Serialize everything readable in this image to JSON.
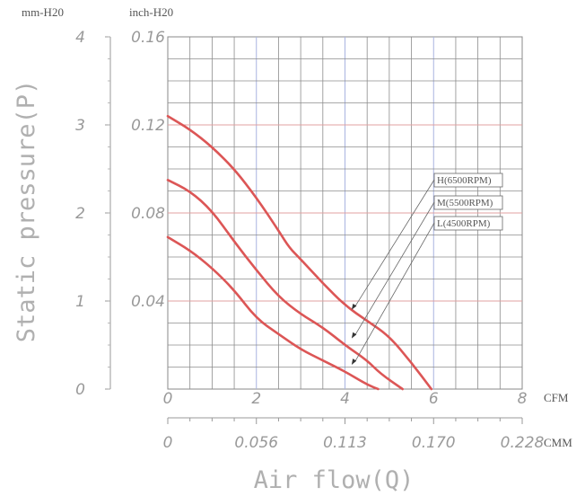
{
  "chart_data": {
    "type": "line",
    "ylabel": "Static pressure(P)",
    "xlabel": "Air flow(Q)",
    "unit_left_mm": "mm-H20",
    "unit_left_inch": "inch-H20",
    "unit_bottom_cfm": "CFM",
    "unit_bottom_cmm": "CMM",
    "xlim": [
      0,
      8
    ],
    "ylim": [
      0,
      0.16
    ],
    "grid": true,
    "y_ticks_inch": [
      "0.16",
      "0.12",
      "0.08",
      "0.04"
    ],
    "y_ticks_mm": [
      "4",
      "3",
      "2",
      "1",
      "0"
    ],
    "x_ticks_cfm": [
      "0",
      "2",
      "4",
      "6",
      "8"
    ],
    "x_ticks_cmm": [
      "0",
      "0.056",
      "0.113",
      "0.170",
      "0.228"
    ],
    "series": [
      {
        "name": "H(6500RPM)",
        "x": [
          0,
          0.5,
          1.0,
          1.5,
          2.0,
          2.5,
          2.75,
          3.0,
          3.5,
          4.0,
          4.5,
          5.0,
          5.5,
          5.95
        ],
        "y": [
          0.124,
          0.118,
          0.11,
          0.1,
          0.087,
          0.072,
          0.064,
          0.059,
          0.048,
          0.038,
          0.031,
          0.024,
          0.012,
          0.0
        ]
      },
      {
        "name": "M(5500RPM)",
        "x": [
          0,
          0.5,
          1.0,
          1.5,
          2.0,
          2.5,
          3.0,
          3.5,
          4.0,
          4.5,
          4.8,
          5.3
        ],
        "y": [
          0.095,
          0.09,
          0.081,
          0.067,
          0.054,
          0.042,
          0.034,
          0.028,
          0.02,
          0.013,
          0.007,
          0.0
        ]
      },
      {
        "name": "L(4500RPM)",
        "x": [
          0,
          0.5,
          1.0,
          1.5,
          2.0,
          2.5,
          3.0,
          3.5,
          4.0,
          4.5,
          4.75
        ],
        "y": [
          0.069,
          0.063,
          0.055,
          0.045,
          0.032,
          0.025,
          0.018,
          0.013,
          0.008,
          0.002,
          0.0
        ]
      }
    ],
    "colors": {
      "curve": "#dc5656",
      "grid": "#8c8c8c",
      "grid_minor_blue": "#a9b4e0",
      "text": "#999999",
      "callout": "#666666"
    }
  }
}
